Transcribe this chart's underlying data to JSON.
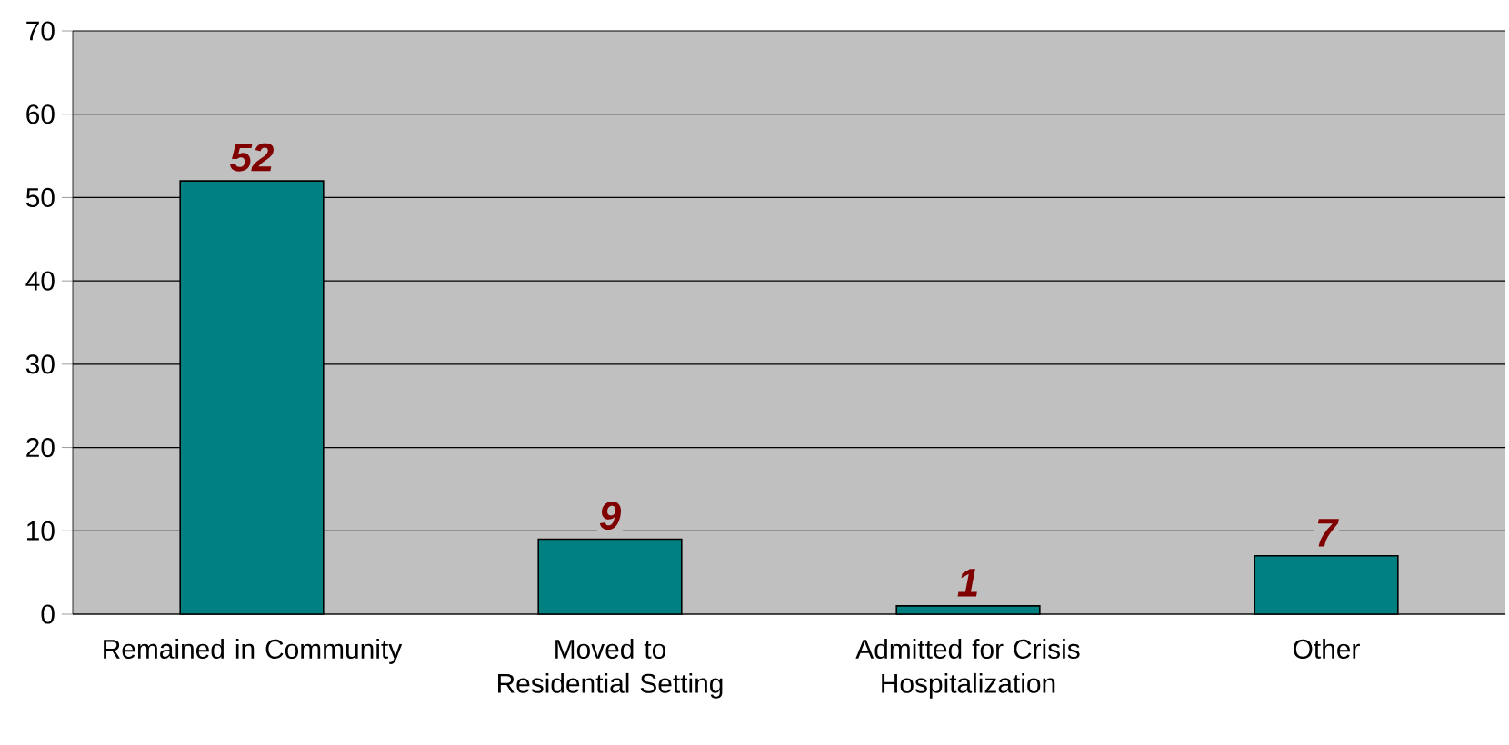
{
  "chart_data": {
    "type": "bar",
    "categories": [
      "Remained in Community",
      "Moved to Residential Setting",
      "Admitted for Crisis Hospitalization",
      "Other"
    ],
    "values": [
      52,
      9,
      1,
      7
    ],
    "color": "#008080",
    "ylim": [
      0,
      70
    ],
    "yticks": [
      0,
      10,
      20,
      30,
      40,
      50,
      60,
      70
    ],
    "grid": "y",
    "data_labels": true
  }
}
